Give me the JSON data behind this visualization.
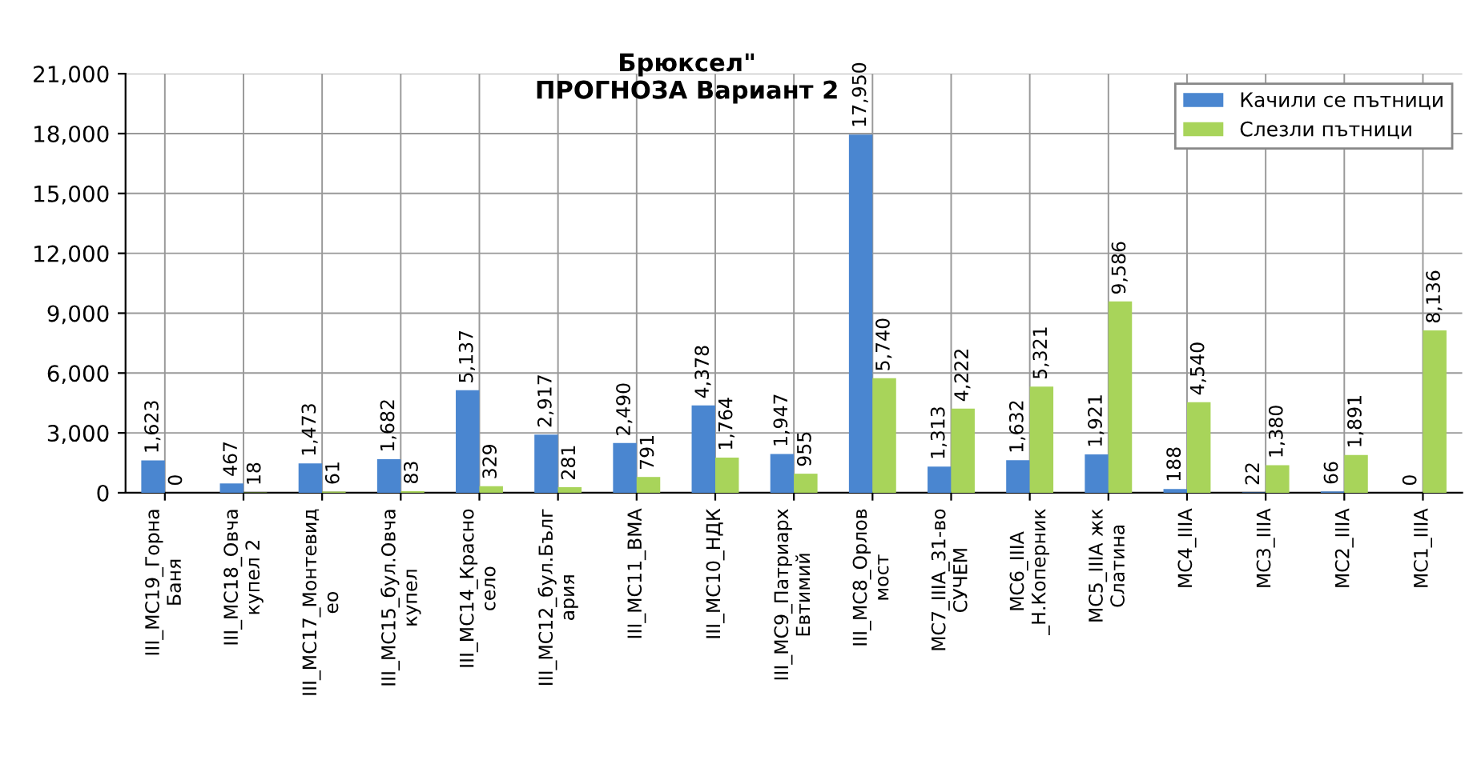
{
  "chart_data": {
    "type": "bar",
    "title": "Брюксел\"\nПРОГНОЗА Вариант 2",
    "categories": [
      "III_МС19_Горна\nБаня",
      "III_МС18_Овча\nкупел 2",
      "III_МС17_Монтевид\nео",
      "III_МС15_бул.Овча\nкупел",
      "III_МС14_Красно\nсело",
      "III_МС12_бул.Бълг\nария",
      "III_МС11_ВМА",
      "III_МС10_НДК",
      "III_МС9_Патриарх\nЕвтимий",
      "III_МС8_Орлов\nмост",
      "МС7_IIIА_31-во\nСУЧЕМ",
      "МС6_IIIА\n_Н.Коперник",
      "МС5_IIIА жк\nСлатина",
      "МС4_IIIА",
      "МС3_IIIА",
      "МС2_IIIА",
      "МС1_IIIА"
    ],
    "series": [
      {
        "name": "Качили се пътници",
        "color": "#4a86d0",
        "values": [
          1623,
          467,
          1473,
          1682,
          5137,
          2917,
          2490,
          4378,
          1947,
          17950,
          1313,
          1632,
          1921,
          188,
          22,
          66,
          0
        ],
        "value_labels": [
          "1,623",
          "467",
          "1,473",
          "1,682",
          "5,137",
          "2,917",
          "2,490",
          "4,378",
          "1,947",
          "17,950",
          "1,313",
          "1,632",
          "1,921",
          "188",
          "22",
          "66",
          "0"
        ]
      },
      {
        "name": "Слезли пътници",
        "color": "#a8d45a",
        "values": [
          0,
          18,
          61,
          83,
          329,
          281,
          791,
          1764,
          955,
          5740,
          4222,
          5321,
          9586,
          4540,
          1380,
          1891,
          8136
        ],
        "value_labels": [
          "0",
          "18",
          "61",
          "83",
          "329",
          "281",
          "791",
          "1,764",
          "955",
          "5,740",
          "4,222",
          "5,321",
          "9,586",
          "4,540",
          "1,380",
          "1,891",
          "8,136"
        ]
      }
    ],
    "ylim": [
      0,
      21000
    ],
    "yticks": [
      {
        "value": 0,
        "label": "0"
      },
      {
        "value": 3000,
        "label": "3,000"
      },
      {
        "value": 6000,
        "label": "6,000"
      },
      {
        "value": 9000,
        "label": "9,000"
      },
      {
        "value": 12000,
        "label": "12,000"
      },
      {
        "value": 15000,
        "label": "15,000"
      },
      {
        "value": 18000,
        "label": "18,000"
      },
      {
        "value": 21000,
        "label": "21,000"
      }
    ],
    "grid": true,
    "legend": "top right"
  }
}
